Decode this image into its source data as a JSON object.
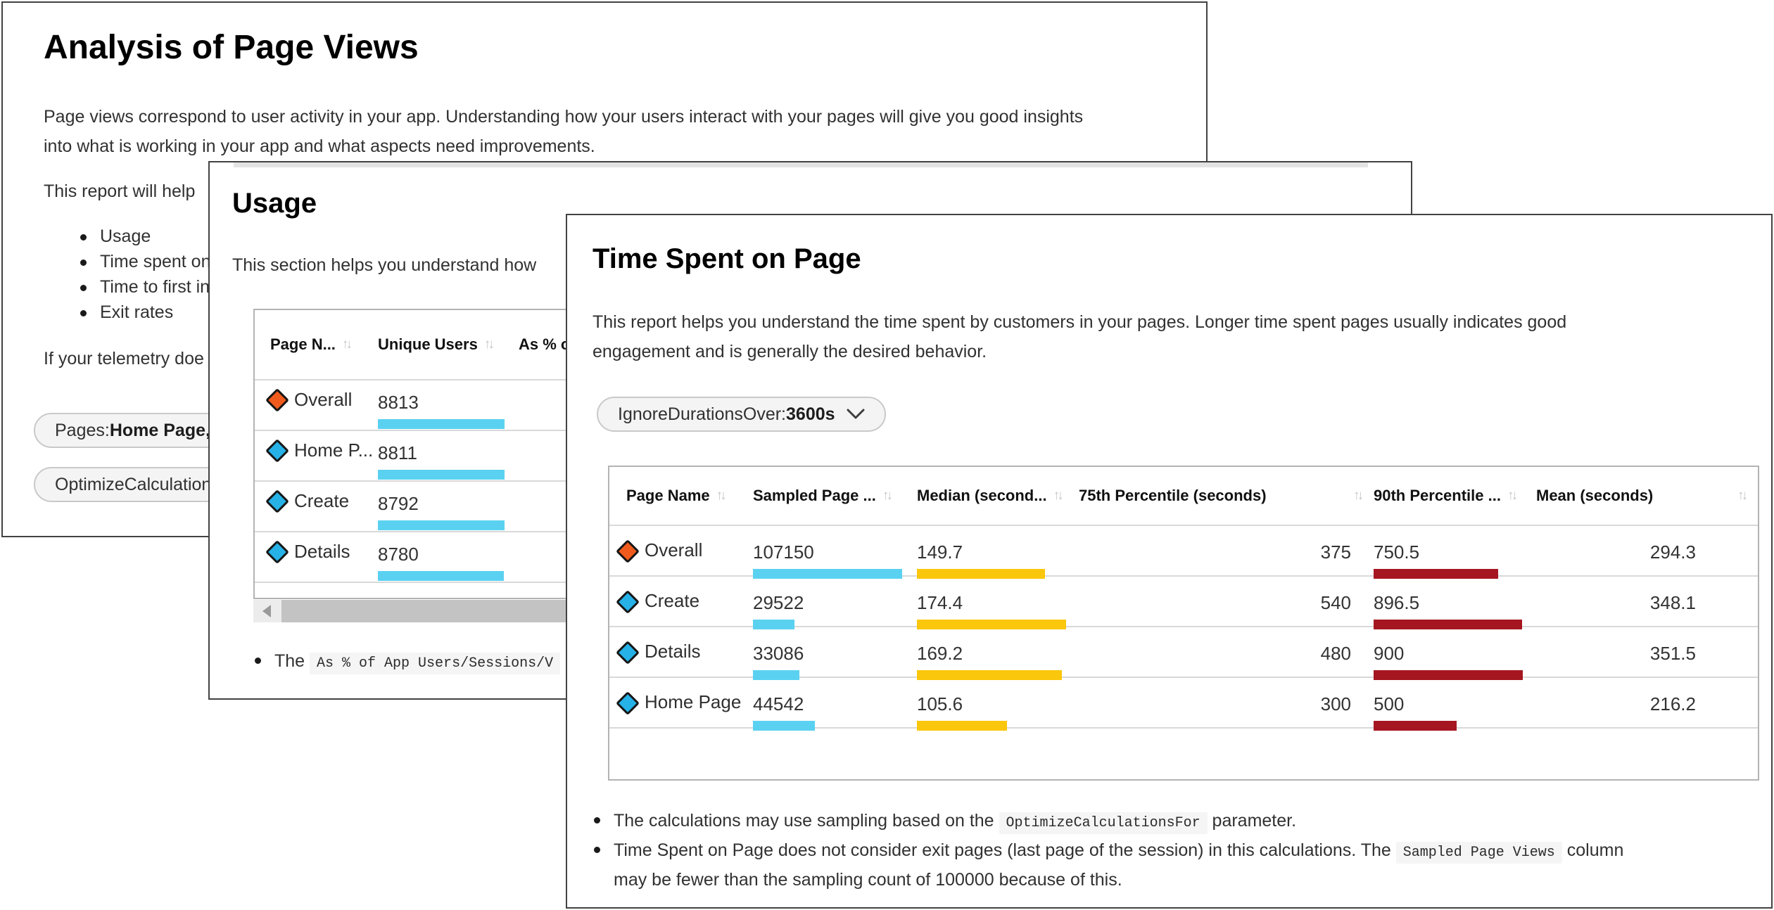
{
  "colors": {
    "accent_orange": "#f05b1d",
    "accent_blue": "#26b2e7",
    "bar_cyan": "#5bd1f1",
    "bar_yellow": "#fbc70c",
    "bar_dark_red": "#a51620"
  },
  "analysis_window": {
    "title": "Analysis of Page Views",
    "intro_line1": "Page views correspond to user activity in your app. Understanding how your users interact with your pages will give you good insights",
    "intro_line2": "into what is working in your app and what aspects need improvements.",
    "report_text": "This report will help",
    "bullets": [
      "Usage",
      "Time spent on p",
      "Time to first inte",
      "Exit rates"
    ],
    "telemetry_text": "If your telemetry doe",
    "pages_pill": {
      "label": "Pages: ",
      "value": "Home Page, D"
    },
    "optimize_pill": {
      "label": "OptimizeCalculations"
    }
  },
  "usage_window": {
    "title": "Usage",
    "description": "This section helps you understand how",
    "table": {
      "columns": [
        "Page N...",
        "Unique Users",
        "As % of"
      ],
      "sort_glyph": "↑↓",
      "rows": [
        {
          "name": "Overall",
          "icon": "orange",
          "unique_users": "8813",
          "bar_pct": 100
        },
        {
          "name": "Home P...",
          "icon": "blue",
          "unique_users": "8811",
          "bar_pct": 100
        },
        {
          "name": "Create",
          "icon": "blue",
          "unique_users": "8792",
          "bar_pct": 99.8
        },
        {
          "name": "Details",
          "icon": "blue",
          "unique_users": "8780",
          "bar_pct": 99.6
        }
      ]
    },
    "note": {
      "pre": "The ",
      "code": "As % of App Users/Sessions/V"
    }
  },
  "time_spent_window": {
    "title": "Time Spent on Page",
    "description_line1": "This report helps you understand the time spent by customers in your pages. Longer time spent pages usually indicates good",
    "description_line2": "engagement and is generally the desired behavior.",
    "filter_pill": {
      "label": "IgnoreDurationsOver: ",
      "value": "3600s"
    },
    "table": {
      "columns": [
        "Page Name",
        "Sampled Page ...",
        "Median (second...",
        "75th Percentile (seconds)",
        "90th Percentile ...",
        "Mean (seconds)"
      ],
      "sort_glyph": "↑↓",
      "rows": [
        {
          "name": "Overall",
          "icon": "orange",
          "sampled": "107150",
          "sampled_pct": 100,
          "median": "149.7",
          "median_pct": 85.8,
          "p75": "375",
          "p90": "750.5",
          "p90_pct": 83.4,
          "mean": "294.3"
        },
        {
          "name": "Create",
          "icon": "blue",
          "sampled": "29522",
          "sampled_pct": 27.6,
          "median": "174.4",
          "median_pct": 100,
          "p75": "540",
          "p90": "896.5",
          "p90_pct": 99.6,
          "mean": "348.1"
        },
        {
          "name": "Details",
          "icon": "blue",
          "sampled": "33086",
          "sampled_pct": 30.9,
          "median": "169.2",
          "median_pct": 97,
          "p75": "480",
          "p90": "900",
          "p90_pct": 100,
          "mean": "351.5"
        },
        {
          "name": "Home Page",
          "icon": "blue",
          "sampled": "44542",
          "sampled_pct": 41.6,
          "median": "105.6",
          "median_pct": 60.6,
          "p75": "300",
          "p90": "500",
          "p90_pct": 55.6,
          "mean": "216.2"
        }
      ]
    },
    "notes": [
      {
        "pre": "The calculations may use sampling based on the ",
        "code": "OptimizeCalculationsFor",
        "post": " parameter.",
        "post2": ""
      },
      {
        "pre": "Time Spent on Page does not consider exit pages (last page of the session) in this calculations. The ",
        "code": "Sampled Page Views",
        "post": " column",
        "post2": "may be fewer than the sampling count of 100000 because of this."
      }
    ]
  }
}
